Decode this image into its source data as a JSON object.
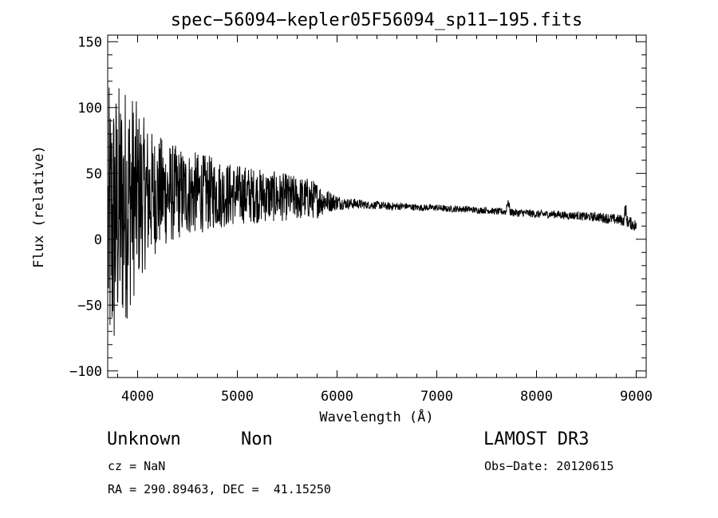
{
  "chart_data": {
    "type": "line",
    "title": "spec−56094−kepler05F56094_sp11−195.fits",
    "xlabel": "Wavelength (Å)",
    "ylabel": "Flux (relative)",
    "xlim": [
      3700,
      9100
    ],
    "ylim": [
      -105,
      155
    ],
    "x_ticks": [
      4000,
      5000,
      6000,
      7000,
      8000,
      9000
    ],
    "x_tick_labels": [
      "4000",
      "5000",
      "6000",
      "7000",
      "8000",
      "9000"
    ],
    "y_ticks": [
      -100,
      -50,
      0,
      50,
      100,
      150
    ],
    "y_tick_labels": [
      "−100",
      "−50",
      "0",
      "50",
      "100",
      "150"
    ],
    "grid": false,
    "series": [
      {
        "name": "flux",
        "x": [
          3700,
          3760,
          3800,
          3850,
          3900,
          3950,
          4000,
          4050,
          4100,
          4150,
          4200,
          4300,
          4400,
          4500,
          4600,
          4700,
          4800,
          4900,
          5000,
          5100,
          5200,
          5300,
          5400,
          5500,
          5600,
          5700,
          5800,
          5900,
          6000,
          6100,
          6200,
          6300,
          6400,
          6500,
          6600,
          6700,
          6800,
          6900,
          7000,
          7100,
          7200,
          7300,
          7400,
          7500,
          7600,
          7700,
          7800,
          7900,
          8000,
          8100,
          8200,
          8300,
          8400,
          8500,
          8600,
          8700,
          8800,
          8900,
          9000
        ],
        "envelope": [
          110,
          110,
          100,
          95,
          90,
          80,
          70,
          60,
          55,
          48,
          45,
          40,
          36,
          33,
          31,
          29,
          27,
          25,
          23,
          22,
          21,
          20,
          19,
          18,
          17,
          16,
          14,
          9,
          6,
          4,
          4,
          3,
          3,
          3,
          3,
          2.5,
          2.5,
          2.5,
          2.5,
          2.5,
          2.5,
          2.5,
          2.5,
          2.5,
          2.5,
          3,
          3,
          3,
          3,
          3,
          3,
          3,
          3,
          3.5,
          3.5,
          4,
          4,
          4.5,
          5
        ],
        "mean": [
          5,
          10,
          20,
          25,
          30,
          32,
          33,
          34,
          34,
          34,
          35,
          35,
          35,
          35,
          35,
          35,
          35,
          34,
          34,
          34,
          33,
          33,
          32,
          32,
          31,
          31,
          30,
          29,
          28,
          27,
          27,
          26,
          26,
          25,
          25,
          25,
          24,
          24,
          24,
          23,
          23,
          23,
          22,
          22,
          21,
          21,
          20,
          20,
          19,
          19,
          19,
          18,
          18,
          17,
          17,
          16,
          15,
          14,
          10
        ]
      }
    ]
  },
  "footer": {
    "object_class": "Unknown",
    "object_subclass": "Non",
    "redshift": "cz = NaN",
    "coordinates": "RA = 290.89463, DEC =  41.15250",
    "survey": "LAMOST DR3",
    "obs_date": "Obs−Date: 20120615"
  }
}
